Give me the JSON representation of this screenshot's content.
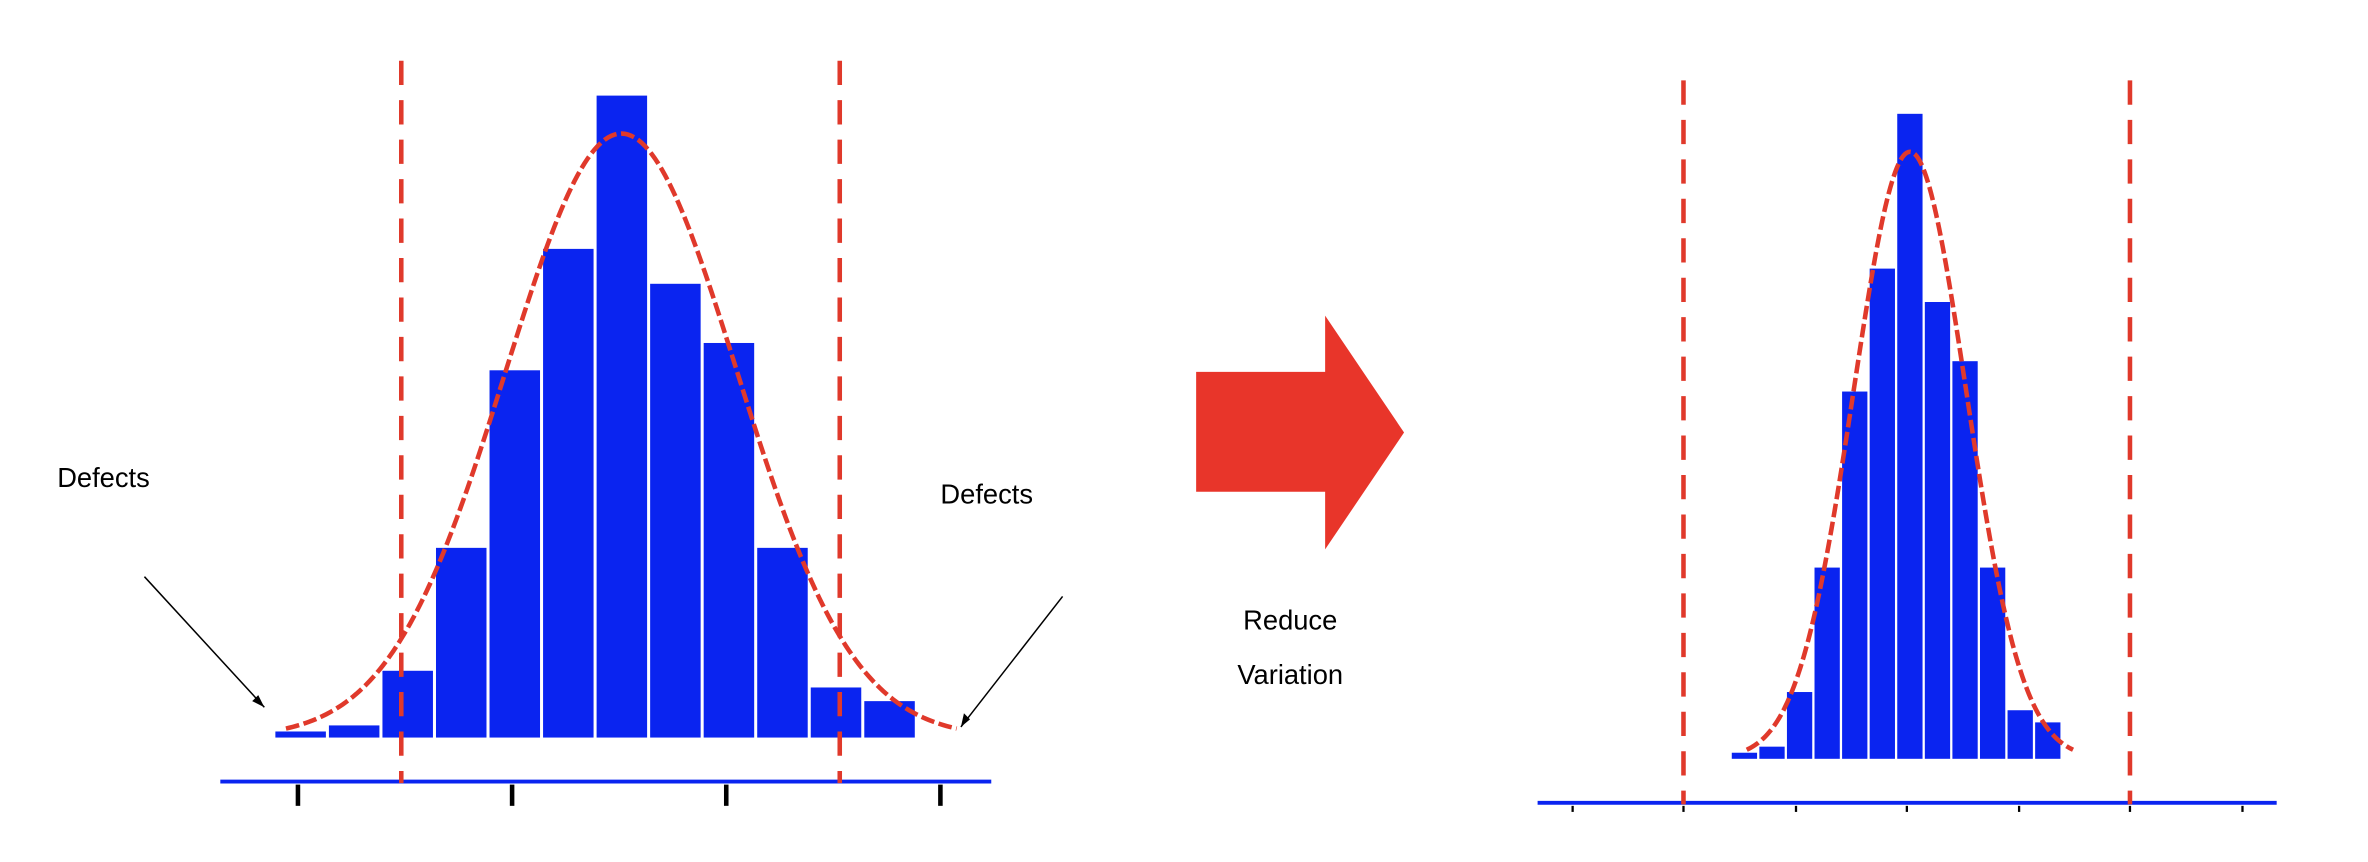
{
  "chart_data": [
    {
      "type": "histogram",
      "bins": [
        0,
        1,
        2,
        3,
        4,
        5,
        6,
        7,
        8,
        9,
        10,
        11,
        12
      ],
      "values": [
        4,
        8,
        44,
        125,
        242,
        322,
        423,
        299,
        260,
        125,
        33,
        24
      ],
      "color": "#0a24f0",
      "xlim": [
        -1,
        13.4
      ],
      "ylim": [
        0,
        450
      ],
      "xticks": [
        0.45,
        4.45,
        8.45,
        12.45
      ],
      "spec_limits": [
        2.38,
        10.57
      ],
      "fit": {
        "mean": 6.49,
        "sd": 2.16,
        "peak": 398,
        "color": "#e0392b"
      },
      "annotations": [
        "Defects",
        "Defects"
      ]
    },
    {
      "type": "histogram",
      "bins": [
        0,
        1,
        2,
        3,
        4,
        5,
        6,
        7,
        8,
        9,
        10,
        11,
        12
      ],
      "values": [
        4,
        8,
        44,
        126,
        242,
        323,
        425,
        301,
        262,
        126,
        32,
        24
      ],
      "color": "#0a24f0",
      "xlim": [
        -7,
        19.8
      ],
      "ylim": [
        0,
        450
      ],
      "xticks": [
        -5.73,
        -1.71,
        2.37,
        6.39,
        10.46,
        14.48,
        18.56
      ],
      "spec_limits": [
        -1.71,
        14.48
      ],
      "fit": {
        "mean": 6.5,
        "sd": 2.04,
        "peak": 400,
        "color": "#e0392b"
      }
    }
  ],
  "arrow_text": [
    "Reduce",
    "Variation"
  ]
}
